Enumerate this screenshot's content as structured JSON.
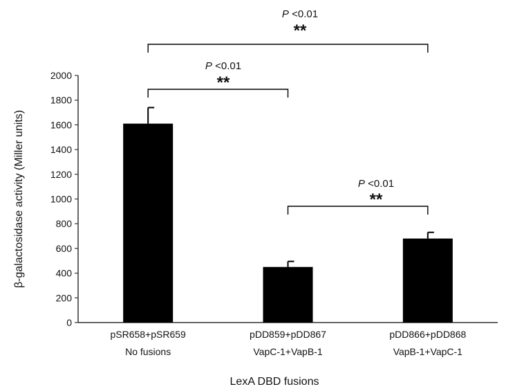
{
  "chart_data": {
    "type": "bar",
    "xlabel": "LexA DBD fusions",
    "ylabel": "β-galactosidase activity (Miller units)",
    "ylim": [
      0,
      2000
    ],
    "yticks": [
      0,
      200,
      400,
      600,
      800,
      1000,
      1200,
      1400,
      1600,
      1800,
      2000
    ],
    "grid": false,
    "categories": [
      {
        "line1": "pSR658+pSR659",
        "line2": "No fusions"
      },
      {
        "line1": "pDD859+pDD867",
        "line2": "VapC-1+VapB-1"
      },
      {
        "line1": "pDD866+pDD868",
        "line2": "VapB-1+VapC-1"
      }
    ],
    "values": [
      1610,
      450,
      680
    ],
    "errors": [
      130,
      45,
      50
    ],
    "bar_color": "#000000",
    "significance": [
      {
        "from": 0,
        "to": 1,
        "p_label": "P",
        "p_text": " <0.01",
        "stars": "**"
      },
      {
        "from": 1,
        "to": 2,
        "p_label": "P",
        "p_text": " <0.01",
        "stars": "**"
      },
      {
        "from": 0,
        "to": 2,
        "p_label": "P",
        "p_text": " <0.01",
        "stars": "**"
      }
    ]
  }
}
